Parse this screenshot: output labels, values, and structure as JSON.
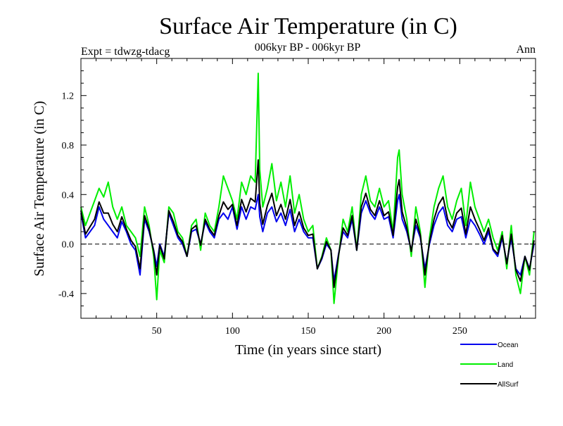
{
  "chart_data": {
    "type": "line",
    "title": "Surface Air Temperature (in C)",
    "subtitle_left": "Expt = tdwzg-tdacg",
    "subtitle_center": "006kyr BP - 006kyr BP",
    "subtitle_right": "Ann",
    "xlabel": "Time (in years since start)",
    "ylabel": "Surface Air Temperature (in C)",
    "xlim": [
      0,
      300
    ],
    "ylim": [
      -0.6,
      1.5
    ],
    "xticks": [
      50,
      100,
      150,
      200,
      250
    ],
    "yticks": [
      -0.4,
      0.0,
      0.4,
      0.8,
      1.2
    ],
    "ytick_labels": [
      "-0.4",
      "0.0",
      "0.4",
      "0.8",
      "1.2"
    ],
    "zero_line": "dashed",
    "legend_position": "below-right",
    "series": [
      {
        "name": "Land",
        "color": "#00ee00",
        "x": [
          0,
          3,
          6,
          9,
          12,
          15,
          18,
          21,
          24,
          27,
          30,
          33,
          36,
          39,
          42,
          45,
          48,
          50,
          52,
          55,
          58,
          61,
          64,
          67,
          70,
          73,
          76,
          79,
          82,
          85,
          88,
          91,
          94,
          97,
          100,
          103,
          106,
          109,
          112,
          115,
          117,
          118,
          120,
          123,
          126,
          129,
          132,
          135,
          138,
          141,
          144,
          147,
          150,
          153,
          156,
          159,
          162,
          165,
          167,
          170,
          173,
          176,
          179,
          182,
          185,
          188,
          191,
          194,
          197,
          200,
          203,
          206,
          209,
          210,
          212,
          215,
          218,
          221,
          224,
          227,
          230,
          233,
          236,
          239,
          242,
          245,
          248,
          251,
          254,
          257,
          260,
          263,
          266,
          269,
          272,
          275,
          278,
          281,
          284,
          287,
          290,
          293,
          296,
          299
        ],
        "y": [
          0.3,
          0.15,
          0.25,
          0.35,
          0.45,
          0.38,
          0.5,
          0.3,
          0.2,
          0.3,
          0.15,
          0.1,
          0.05,
          -0.1,
          0.3,
          0.15,
          -0.1,
          -0.45,
          -0.05,
          -0.15,
          0.3,
          0.25,
          0.1,
          0.05,
          -0.1,
          0.15,
          0.2,
          -0.05,
          0.25,
          0.15,
          0.1,
          0.3,
          0.55,
          0.45,
          0.35,
          0.2,
          0.5,
          0.4,
          0.55,
          0.5,
          1.38,
          0.6,
          0.3,
          0.45,
          0.65,
          0.35,
          0.5,
          0.3,
          0.55,
          0.25,
          0.4,
          0.2,
          0.1,
          0.15,
          -0.2,
          -0.1,
          0.05,
          -0.05,
          -0.48,
          -0.1,
          0.2,
          0.1,
          0.3,
          -0.05,
          0.4,
          0.55,
          0.35,
          0.3,
          0.45,
          0.3,
          0.35,
          0.1,
          0.7,
          0.76,
          0.4,
          0.2,
          -0.1,
          0.3,
          0.1,
          -0.35,
          0.05,
          0.3,
          0.45,
          0.55,
          0.3,
          0.2,
          0.35,
          0.45,
          0.15,
          0.5,
          0.3,
          0.2,
          0.1,
          0.2,
          0.05,
          -0.05,
          0.1,
          -0.2,
          0.15,
          -0.25,
          -0.4,
          -0.1,
          -0.25,
          0.1
        ]
      },
      {
        "name": "Ocean",
        "color": "#0000ee",
        "x": [
          0,
          3,
          6,
          9,
          12,
          15,
          18,
          21,
          24,
          27,
          30,
          33,
          36,
          39,
          42,
          45,
          48,
          50,
          52,
          55,
          58,
          61,
          64,
          67,
          70,
          73,
          76,
          79,
          82,
          85,
          88,
          91,
          94,
          97,
          100,
          103,
          106,
          109,
          112,
          115,
          117,
          118,
          120,
          123,
          126,
          129,
          132,
          135,
          138,
          141,
          144,
          147,
          150,
          153,
          156,
          159,
          162,
          165,
          167,
          170,
          173,
          176,
          179,
          182,
          185,
          188,
          191,
          194,
          197,
          200,
          203,
          206,
          209,
          210,
          212,
          215,
          218,
          221,
          224,
          227,
          230,
          233,
          236,
          239,
          242,
          245,
          248,
          251,
          254,
          257,
          260,
          263,
          266,
          269,
          272,
          275,
          278,
          281,
          284,
          287,
          290,
          293,
          296,
          299
        ],
        "y": [
          0.25,
          0.05,
          0.1,
          0.15,
          0.3,
          0.2,
          0.15,
          0.1,
          0.05,
          0.18,
          0.1,
          0.0,
          -0.05,
          -0.25,
          0.2,
          0.1,
          -0.05,
          -0.18,
          0.0,
          -0.1,
          0.25,
          0.15,
          0.05,
          0.0,
          -0.1,
          0.1,
          0.12,
          0.0,
          0.18,
          0.1,
          0.05,
          0.2,
          0.25,
          0.2,
          0.3,
          0.12,
          0.3,
          0.2,
          0.3,
          0.28,
          0.4,
          0.22,
          0.1,
          0.25,
          0.3,
          0.18,
          0.25,
          0.15,
          0.28,
          0.1,
          0.2,
          0.1,
          0.05,
          0.05,
          -0.2,
          -0.12,
          0.0,
          -0.05,
          -0.3,
          -0.08,
          0.1,
          0.05,
          0.2,
          -0.05,
          0.25,
          0.35,
          0.25,
          0.2,
          0.3,
          0.2,
          0.22,
          0.05,
          0.35,
          0.4,
          0.2,
          0.1,
          -0.05,
          0.15,
          0.05,
          -0.2,
          0.0,
          0.15,
          0.25,
          0.3,
          0.15,
          0.1,
          0.2,
          0.22,
          0.05,
          0.2,
          0.15,
          0.08,
          0.0,
          0.1,
          -0.05,
          -0.1,
          0.05,
          -0.15,
          0.05,
          -0.2,
          -0.25,
          -0.1,
          -0.2,
          0.0
        ]
      },
      {
        "name": "AllSurf",
        "color": "#000000",
        "x": [
          0,
          3,
          6,
          9,
          12,
          15,
          18,
          21,
          24,
          27,
          30,
          33,
          36,
          39,
          42,
          45,
          48,
          50,
          52,
          55,
          58,
          61,
          64,
          67,
          70,
          73,
          76,
          79,
          82,
          85,
          88,
          91,
          94,
          97,
          100,
          103,
          106,
          109,
          112,
          115,
          117,
          118,
          120,
          123,
          126,
          129,
          132,
          135,
          138,
          141,
          144,
          147,
          150,
          153,
          156,
          159,
          162,
          165,
          167,
          170,
          173,
          176,
          179,
          182,
          185,
          188,
          191,
          194,
          197,
          200,
          203,
          206,
          209,
          210,
          212,
          215,
          218,
          221,
          224,
          227,
          230,
          233,
          236,
          239,
          242,
          245,
          248,
          251,
          254,
          257,
          260,
          263,
          266,
          269,
          272,
          275,
          278,
          281,
          284,
          287,
          290,
          293,
          296,
          299
        ],
        "y": [
          0.27,
          0.08,
          0.14,
          0.2,
          0.34,
          0.25,
          0.25,
          0.16,
          0.1,
          0.22,
          0.12,
          0.03,
          -0.02,
          -0.2,
          0.23,
          0.12,
          -0.06,
          -0.25,
          -0.01,
          -0.12,
          0.27,
          0.18,
          0.07,
          0.02,
          -0.1,
          0.12,
          0.15,
          -0.01,
          0.2,
          0.12,
          0.07,
          0.23,
          0.34,
          0.28,
          0.32,
          0.15,
          0.36,
          0.26,
          0.37,
          0.34,
          0.68,
          0.33,
          0.16,
          0.31,
          0.41,
          0.23,
          0.32,
          0.2,
          0.36,
          0.15,
          0.26,
          0.13,
          0.07,
          0.08,
          -0.2,
          -0.11,
          0.02,
          -0.05,
          -0.35,
          -0.09,
          0.13,
          0.07,
          0.23,
          -0.05,
          0.3,
          0.41,
          0.28,
          0.23,
          0.35,
          0.23,
          0.26,
          0.07,
          0.46,
          0.52,
          0.26,
          0.13,
          -0.06,
          0.2,
          0.07,
          -0.25,
          0.02,
          0.2,
          0.32,
          0.38,
          0.2,
          0.13,
          0.25,
          0.29,
          0.08,
          0.3,
          0.2,
          0.12,
          0.03,
          0.13,
          -0.04,
          -0.08,
          0.07,
          -0.16,
          0.08,
          -0.21,
          -0.3,
          -0.1,
          -0.21,
          0.03
        ]
      }
    ],
    "legend": [
      {
        "label": "Ocean",
        "color": "#0000ee"
      },
      {
        "label": "Land",
        "color": "#00ee00"
      },
      {
        "label": "AllSurf",
        "color": "#000000"
      }
    ]
  }
}
